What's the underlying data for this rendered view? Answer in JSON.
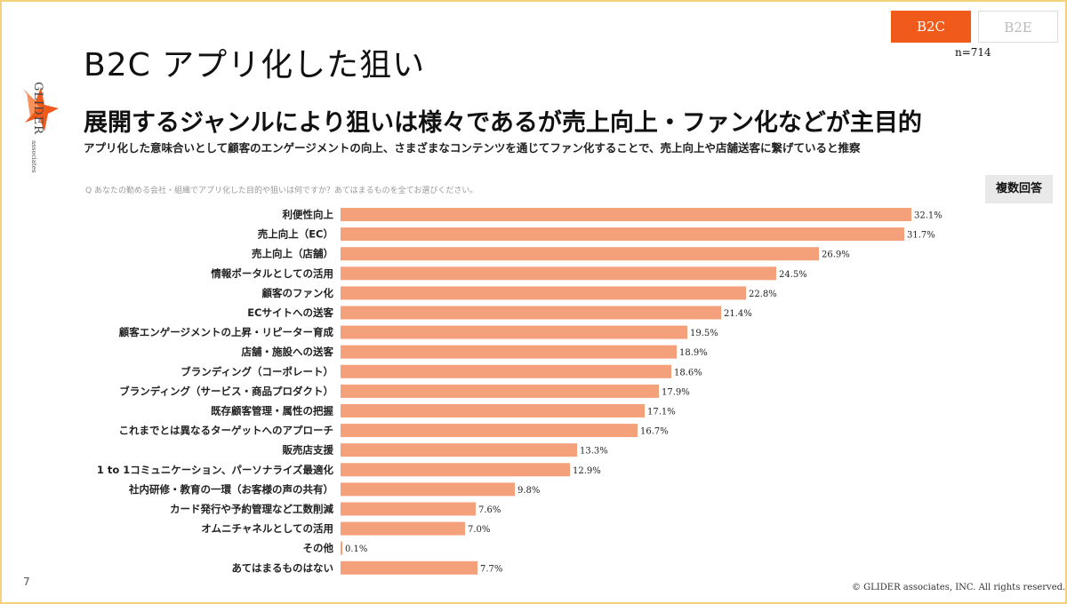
{
  "slide": {
    "title": "B2C アプリ化した狙い",
    "segment_tabs": [
      "B2C",
      "B2E"
    ],
    "sample_size": "n=714",
    "headline": "展開するジャンルにより狙いは様々であるが売上向上・ファン化などが主目的",
    "subheadline": "アプリ化した意味合いとして顧客のエンゲージメントの向上、さまざまなコンテンツを通じてファン化することで、売上向上や店舗送客に繋げていると推察",
    "question": "Q あなたの勤める会社・組織でアプリ化した目的や狙いは何ですか？あてはまるものを全てお選びください。",
    "badge": "複数回答",
    "page_number": "7",
    "copyright": "© GLIDER associates, INC. All rights reserved.",
    "logo_text": "GLIDER",
    "logo_sub": "associates",
    "colors": {
      "bar": "#f4a07a",
      "accent": "#f05a1a"
    }
  },
  "chart_data": {
    "type": "bar",
    "orientation": "horizontal",
    "categories": [
      "利便性向上",
      "売上向上（EC）",
      "売上向上（店舗）",
      "情報ポータルとしての活用",
      "顧客のファン化",
      "ECサイトへの送客",
      "顧客エンゲージメントの上昇・リピーター育成",
      "店舗・施設への送客",
      "ブランディング（コーポレート）",
      "ブランディング（サービス・商品プロダクト）",
      "既存顧客管理・属性の把握",
      "これまでとは異なるターゲットへのアプローチ",
      "販売店支援",
      "1 to 1コミュニケーション、パーソナライズ最適化",
      "社内研修・教育の一環（お客様の声の共有）",
      "カード発行や予約管理など工数削減",
      "オムニチャネルとしての活用",
      "その他",
      "あてはまるものはない"
    ],
    "values": [
      32.1,
      31.7,
      26.9,
      24.5,
      22.8,
      21.4,
      19.5,
      18.9,
      18.6,
      17.9,
      17.1,
      16.7,
      13.3,
      12.9,
      9.8,
      7.6,
      7.0,
      0.1,
      7.7
    ],
    "value_labels": [
      "32.1%",
      "31.7%",
      "26.9%",
      "24.5%",
      "22.8%",
      "21.4%",
      "19.5%",
      "18.9%",
      "18.6%",
      "17.9%",
      "17.1%",
      "16.7%",
      "13.3%",
      "12.9%",
      "9.8%",
      "7.6%",
      "7.0%",
      "0.1%",
      "7.7%"
    ],
    "unit": "%",
    "grid": false,
    "legend": "none"
  }
}
